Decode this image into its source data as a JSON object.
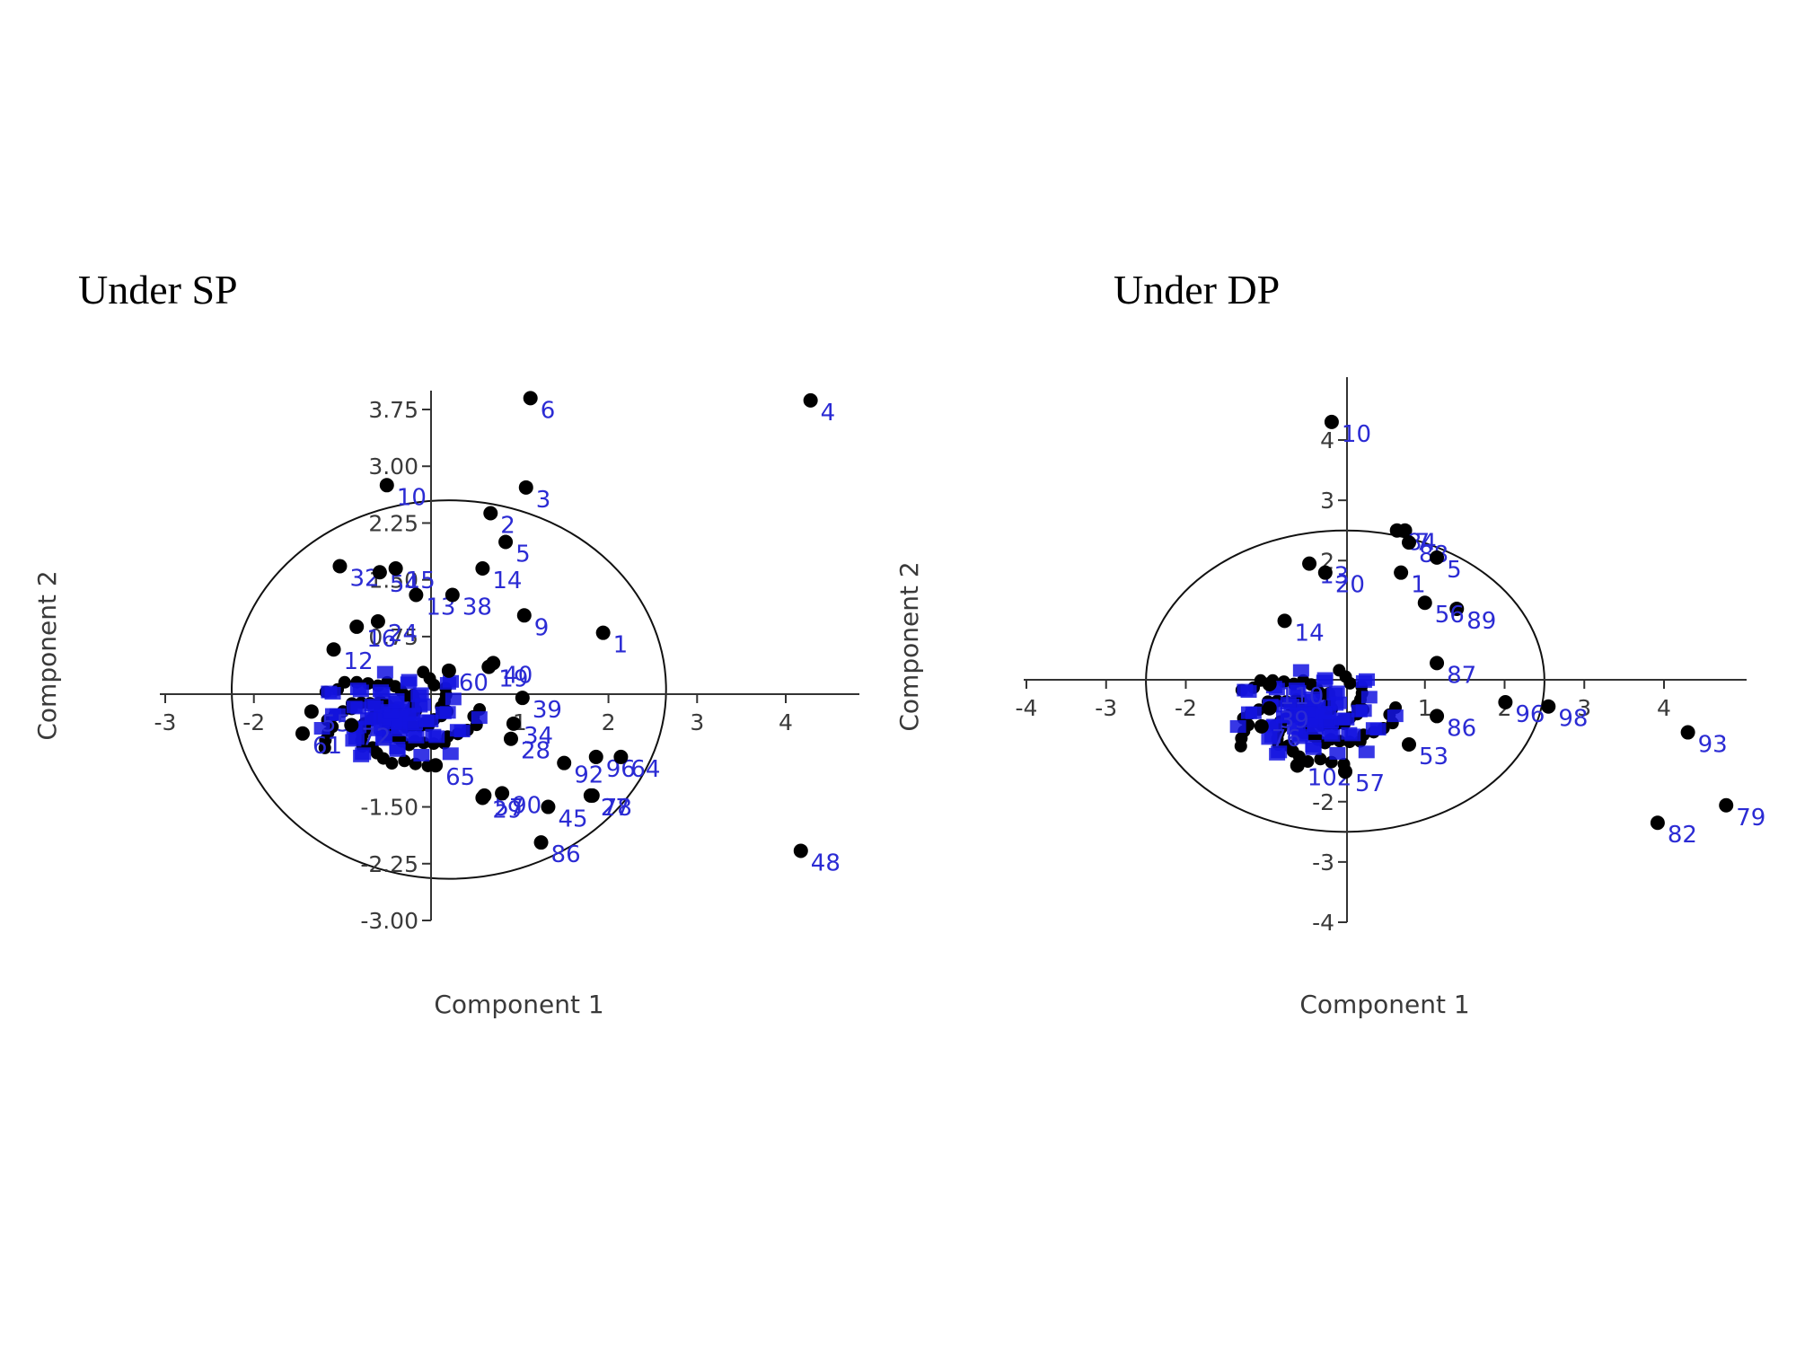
{
  "titles": {
    "sp": "Under SP",
    "dp": "Under DP"
  },
  "colors": {
    "points": "#000000",
    "labels": "#2b2bd4",
    "axes": "#333333",
    "cloud": "#1414e0"
  },
  "chart_data": [
    {
      "type": "scatter",
      "title": "Under SP",
      "xlabel": "Component 1",
      "ylabel": "Component 2",
      "xlim": [
        -3,
        4.8
      ],
      "ylim": [
        -3.0,
        3.95
      ],
      "xticks": [
        -3,
        -2,
        1,
        2,
        3,
        4
      ],
      "xtick_labels": [
        "-3",
        "-2",
        "1",
        "2",
        "3",
        "4"
      ],
      "yticks": [
        -3.0,
        -2.25,
        -1.5,
        0.75,
        1.5,
        2.25,
        3.0,
        3.75
      ],
      "ytick_labels": [
        "-3.00",
        "-2.25",
        "-1.50",
        "0.75",
        "1.50",
        "2.25",
        "3.00",
        "3.75"
      ],
      "ellipse": {
        "center": [
          0.2,
          0.05
        ],
        "rx": 2.45,
        "ry": 2.5
      },
      "points": [
        {
          "label": "6",
          "x": 1.12,
          "y": 3.9
        },
        {
          "label": "4",
          "x": 4.28,
          "y": 3.87
        },
        {
          "label": "10",
          "x": -0.5,
          "y": 2.75
        },
        {
          "label": "3",
          "x": 1.07,
          "y": 2.72
        },
        {
          "label": "2",
          "x": 0.67,
          "y": 2.38
        },
        {
          "label": "5",
          "x": 0.84,
          "y": 2.0
        },
        {
          "label": "32",
          "x": -1.03,
          "y": 1.68
        },
        {
          "label": "54",
          "x": -0.58,
          "y": 1.6
        },
        {
          "label": "15",
          "x": -0.4,
          "y": 1.65
        },
        {
          "label": "14",
          "x": 0.58,
          "y": 1.65
        },
        {
          "label": "13",
          "x": -0.17,
          "y": 1.3
        },
        {
          "label": "38",
          "x": 0.24,
          "y": 1.3
        },
        {
          "label": "9",
          "x": 1.05,
          "y": 1.03
        },
        {
          "label": "1",
          "x": 1.94,
          "y": 0.8
        },
        {
          "label": "16",
          "x": -0.84,
          "y": 0.88
        },
        {
          "label": "24",
          "x": -0.6,
          "y": 0.95
        },
        {
          "label": "12",
          "x": -1.1,
          "y": 0.58
        },
        {
          "label": "60",
          "x": 0.2,
          "y": 0.3
        },
        {
          "label": "40",
          "x": 0.7,
          "y": 0.4
        },
        {
          "label": "19",
          "x": 0.65,
          "y": 0.35
        },
        {
          "label": "39",
          "x": 1.03,
          "y": -0.06
        },
        {
          "label": "55",
          "x": -1.35,
          "y": -0.24
        },
        {
          "label": "61",
          "x": -1.45,
          "y": -0.53
        },
        {
          "label": "34",
          "x": 0.93,
          "y": -0.4
        },
        {
          "label": "96",
          "x": 1.86,
          "y": -0.84
        },
        {
          "label": "64",
          "x": 2.14,
          "y": -0.84
        },
        {
          "label": "72",
          "x": -0.9,
          "y": -0.42
        },
        {
          "label": "28",
          "x": 0.9,
          "y": -0.6
        },
        {
          "label": "92",
          "x": 1.5,
          "y": -0.92
        },
        {
          "label": "65",
          "x": 0.05,
          "y": -0.95
        },
        {
          "label": "27",
          "x": 1.8,
          "y": -1.35
        },
        {
          "label": "78",
          "x": 1.82,
          "y": -1.35
        },
        {
          "label": "57",
          "x": 0.6,
          "y": -1.35
        },
        {
          "label": "29",
          "x": 0.58,
          "y": -1.38
        },
        {
          "label": "90",
          "x": 0.8,
          "y": -1.32
        },
        {
          "label": "45",
          "x": 1.32,
          "y": -1.5
        },
        {
          "label": "86",
          "x": 1.24,
          "y": -1.97
        },
        {
          "label": "48",
          "x": 4.17,
          "y": -2.08
        }
      ]
    },
    {
      "type": "scatter",
      "title": "Under DP",
      "xlabel": "Component 1",
      "ylabel": "Component 2",
      "xlim": [
        -4,
        5
      ],
      "ylim": [
        -4,
        4.8
      ],
      "xticks": [
        -4,
        -3,
        -2,
        1,
        2,
        3,
        4
      ],
      "xtick_labels": [
        "-4",
        "-3",
        "-2",
        "1",
        "2",
        "3",
        "4"
      ],
      "yticks": [
        -4,
        -3,
        -2,
        2,
        3,
        4
      ],
      "ytick_labels": [
        "-4",
        "-3",
        "-2",
        "2",
        "3",
        "4"
      ],
      "ellipse": {
        "center": [
          0.0,
          0.0
        ],
        "rx": 2.5,
        "ry": 2.5
      },
      "points": [
        {
          "label": "10",
          "x": -0.17,
          "y": 4.3
        },
        {
          "label": "7",
          "x": 0.75,
          "y": 2.5
        },
        {
          "label": "84",
          "x": 0.65,
          "y": 2.5
        },
        {
          "label": "88",
          "x": 0.8,
          "y": 2.3
        },
        {
          "label": "5",
          "x": 1.15,
          "y": 2.05
        },
        {
          "label": "13",
          "x": -0.45,
          "y": 1.95
        },
        {
          "label": "20",
          "x": -0.25,
          "y": 1.8
        },
        {
          "label": "1",
          "x": 0.7,
          "y": 1.8
        },
        {
          "label": "14",
          "x": -0.76,
          "y": 1.0
        },
        {
          "label": "89",
          "x": 1.4,
          "y": 1.2
        },
        {
          "label": "56",
          "x": 1.0,
          "y": 1.3
        },
        {
          "label": "87",
          "x": 1.15,
          "y": 0.3
        },
        {
          "label": "110",
          "x": -0.95,
          "y": -0.05
        },
        {
          "label": "39",
          "x": -0.95,
          "y": -0.45
        },
        {
          "label": "76",
          "x": -1.05,
          "y": -0.75
        },
        {
          "label": "96",
          "x": 2.01,
          "y": -0.35
        },
        {
          "label": "98",
          "x": 2.55,
          "y": -0.42
        },
        {
          "label": "86",
          "x": 1.15,
          "y": -0.58
        },
        {
          "label": "102",
          "x": -0.6,
          "y": -1.4
        },
        {
          "label": "57",
          "x": 0.0,
          "y": -1.5
        },
        {
          "label": "53",
          "x": 0.8,
          "y": -1.05
        },
        {
          "label": "93",
          "x": 4.3,
          "y": -0.85
        },
        {
          "label": "79",
          "x": 4.78,
          "y": -2.06
        },
        {
          "label": "82",
          "x": 3.92,
          "y": -2.35
        }
      ]
    }
  ]
}
